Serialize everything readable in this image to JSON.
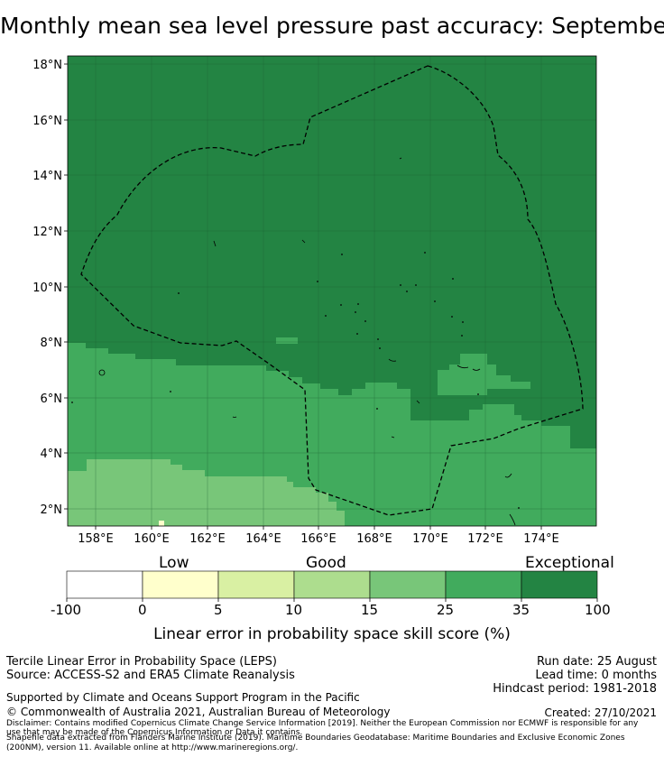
{
  "title": "Monthly mean sea level pressure past accuracy: September",
  "map": {
    "x_tick_labels": [
      "158°E",
      "160°E",
      "162°E",
      "164°E",
      "166°E",
      "168°E",
      "170°E",
      "172°E",
      "174°E"
    ],
    "y_tick_labels": [
      "18°N",
      "16°N",
      "14°N",
      "12°N",
      "10°N",
      "8°N",
      "6°N",
      "4°N",
      "2°N"
    ],
    "colors": {
      "exceptional": "#238443",
      "band_25_35": "#41ab5d",
      "band_15_25": "#78c679",
      "band_10_15": "#addd8e",
      "band_5_10": "#d9f0a3",
      "band_0_5": "#ffffcc",
      "band_neg": "#ffffff",
      "eez_line": "#000000"
    }
  },
  "colorbar": {
    "category_labels": [
      "Low",
      "Good",
      "Exceptional"
    ],
    "tick_labels": [
      "-100",
      "0",
      "5",
      "10",
      "15",
      "25",
      "35",
      "100"
    ],
    "colors": [
      "#ffffff",
      "#ffffcc",
      "#d9f0a3",
      "#addd8e",
      "#78c679",
      "#41ab5d",
      "#238443"
    ],
    "label": "Linear error in probability space skill score (%)"
  },
  "footer": {
    "product": "Tercile Linear Error in Probability Space (LEPS)",
    "source": "Source: ACCESS-S2 and ERA5 Climate Reanalysis",
    "run_date": "Run date: 25 August",
    "lead_time": "Lead time: 0 months",
    "hindcast": "Hindcast period: 1981-2018",
    "support": "Supported by Climate and Oceans Support Program in the Pacific",
    "copyright": "© Commonwealth of Australia 2021, Australian Bureau of Meteorology",
    "created": "Created: 27/10/2021",
    "disclaimer_1": "Disclaimer: Contains modified Copernicus Climate Change Service Information [2019]. Neither the European Commission nor ECMWF is responsible for any",
    "disclaimer_2": "use that may be made of the Copernicus Information or Data it contains.",
    "shapefile_1": "Shapefile data extracted from Flanders Marine Institute (2019). Maritime Boundaries Geodatabase: Maritime Boundaries and Exclusive Economic Zones",
    "shapefile_2": "(200NM), version 11. Available online at http://www.marineregions.org/."
  }
}
